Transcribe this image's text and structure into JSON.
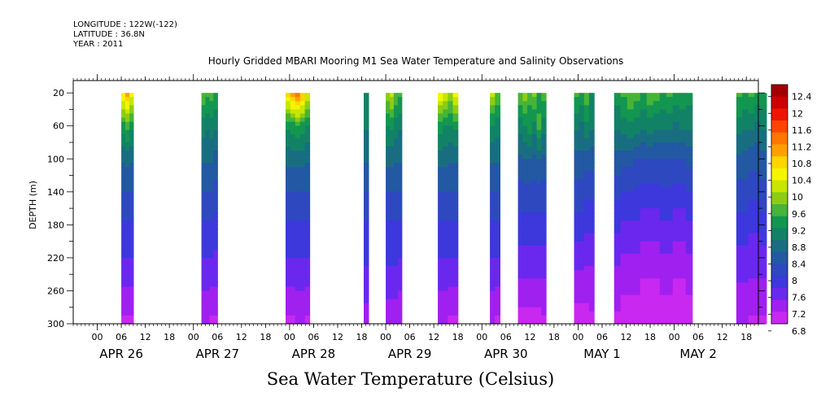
{
  "meta": {
    "longitude": "LONGITUDE : 122W(-122)",
    "latitude": "LATITUDE : 36.8N",
    "year": "YEAR : 2011"
  },
  "footer_title": "Sea Water Temperature (Celsius)",
  "chart_data": {
    "type": "heatmap",
    "title": "Hourly Gridded MBARI Mooring M1 Sea Water Temperature and Salinity Observations",
    "ylabel": "DEPTH (m)",
    "xlabel": "",
    "y_inverted": true,
    "ylim": [
      300,
      5
    ],
    "yticks": [
      20,
      60,
      100,
      140,
      180,
      220,
      260,
      300
    ],
    "xlim_hours": [
      -6,
      165
    ],
    "xtick_hours_of_day": [
      "00",
      "06",
      "12",
      "18",
      "00",
      "06",
      "12",
      "18",
      "00",
      "06",
      "12",
      "18",
      "00",
      "06",
      "12",
      "18",
      "00",
      "06",
      "12",
      "18",
      "00",
      "06",
      "12",
      "18",
      "00",
      "06",
      "12",
      "18"
    ],
    "day_labels": [
      {
        "label": "APR 26",
        "hour": 6
      },
      {
        "label": "APR 27",
        "hour": 30
      },
      {
        "label": "APR 28",
        "hour": 54
      },
      {
        "label": "APR 29",
        "hour": 78
      },
      {
        "label": "APR 30",
        "hour": 102
      },
      {
        "label": "MAY  1",
        "hour": 126
      },
      {
        "label": "MAY  2",
        "hour": 150
      }
    ],
    "colorbar": {
      "labels": [
        "12.4",
        "12",
        "11.6",
        "11.2",
        "10.8",
        "10.4",
        "10",
        "9.6",
        "9.2",
        "8.8",
        "8.4",
        "8",
        "7.6",
        "7.2",
        "6.8"
      ],
      "colors": [
        "#a00000",
        "#cc0000",
        "#ee1500",
        "#ff4400",
        "#ff7700",
        "#ffa000",
        "#ffd500",
        "#f5f500",
        "#c8e600",
        "#8ccd14",
        "#46b438",
        "#129650",
        "#128266",
        "#186e80",
        "#2358a2",
        "#2e48c0",
        "#3c38dc",
        "#6a28ee",
        "#a020f0",
        "#c828f0"
      ]
    },
    "series": [
      {
        "start": 6,
        "end": 9,
        "cols": [
          [
            10.5,
            9.2,
            8.5,
            8.2,
            7.9,
            7.5,
            7.0
          ],
          [
            10.9,
            9.4,
            8.6,
            8.2,
            7.9,
            7.5,
            7.0
          ],
          [
            10.4,
            9.1,
            8.5,
            8.2,
            7.9,
            7.5,
            7.0
          ]
        ]
      },
      {
        "start": 26,
        "end": 30,
        "cols": [
          [
            9.6,
            8.9,
            8.5,
            8.2,
            7.9,
            7.5,
            7.1
          ],
          [
            9.4,
            8.8,
            8.5,
            8.2,
            7.9,
            7.5,
            7.1
          ],
          [
            9.5,
            8.9,
            8.5,
            8.2,
            7.9,
            7.5,
            7.0
          ],
          [
            9.3,
            8.8,
            8.4,
            8.1,
            7.8,
            7.5,
            7.0
          ]
        ]
      },
      {
        "start": 47,
        "end": 53,
        "cols": [
          [
            10.6,
            9.1,
            8.6,
            8.2,
            7.9,
            7.5,
            7.0
          ],
          [
            11.0,
            9.2,
            8.6,
            8.2,
            7.9,
            7.5,
            7.0
          ],
          [
            11.2,
            9.3,
            8.6,
            8.2,
            7.9,
            7.5,
            7.1
          ],
          [
            10.8,
            9.2,
            8.6,
            8.2,
            7.9,
            7.5,
            7.1
          ],
          [
            10.2,
            9.0,
            8.5,
            8.2,
            7.9,
            7.5,
            7.0
          ]
        ]
      },
      {
        "start": 66.5,
        "end": 67.7,
        "cols": [
          [
            9.0,
            8.8,
            8.5,
            8.2,
            7.9,
            7.6,
            7.2
          ]
        ]
      },
      {
        "start": 72,
        "end": 76,
        "cols": [
          [
            9.8,
            9.0,
            8.6,
            8.2,
            7.9,
            7.6,
            7.1
          ],
          [
            10.0,
            9.1,
            8.6,
            8.2,
            7.9,
            7.6,
            7.1
          ],
          [
            9.6,
            8.9,
            8.5,
            8.2,
            7.9,
            7.6,
            7.1
          ],
          [
            9.4,
            8.8,
            8.5,
            8.2,
            7.9,
            7.5,
            7.1
          ]
        ]
      },
      {
        "start": 85,
        "end": 90,
        "cols": [
          [
            10.4,
            9.2,
            8.6,
            8.2,
            7.9,
            7.5,
            7.1
          ],
          [
            10.2,
            9.0,
            8.6,
            8.2,
            7.9,
            7.5,
            7.1
          ],
          [
            9.8,
            9.0,
            8.5,
            8.2,
            7.9,
            7.5,
            7.0
          ],
          [
            10.3,
            9.1,
            8.5,
            8.2,
            7.9,
            7.5,
            7.0
          ]
        ]
      },
      {
        "start": 98,
        "end": 100.5,
        "cols": [
          [
            10.0,
            9.0,
            8.5,
            8.2,
            7.9,
            7.5,
            7.1
          ],
          [
            9.6,
            8.9,
            8.5,
            8.2,
            7.9,
            7.5,
            7.0
          ]
        ]
      },
      {
        "start": 105,
        "end": 112,
        "cols": [
          [
            9.6,
            8.9,
            8.4,
            8.1,
            7.8,
            7.4,
            6.9
          ],
          [
            9.8,
            9.0,
            8.5,
            8.1,
            7.8,
            7.4,
            6.9
          ],
          [
            9.4,
            9.2,
            8.5,
            8.1,
            7.8,
            7.4,
            6.9
          ],
          [
            9.7,
            8.9,
            8.4,
            8.1,
            7.8,
            7.4,
            6.9
          ],
          [
            9.2,
            9.4,
            8.5,
            8.1,
            7.8,
            7.4,
            6.9
          ],
          [
            9.5,
            8.9,
            8.4,
            8.1,
            7.8,
            7.4,
            7.0
          ]
        ]
      },
      {
        "start": 119,
        "end": 124,
        "cols": [
          [
            9.4,
            8.8,
            8.4,
            8.1,
            7.8,
            7.3,
            6.9
          ],
          [
            9.2,
            8.7,
            8.4,
            8.1,
            7.8,
            7.3,
            6.9
          ],
          [
            9.5,
            9.0,
            8.3,
            8.0,
            7.7,
            7.3,
            6.9
          ],
          [
            9.0,
            8.8,
            8.3,
            8.0,
            7.7,
            7.3,
            7.0
          ]
        ]
      },
      {
        "start": 129,
        "end": 148.5,
        "cols": [
          [
            9.2,
            8.8,
            8.4,
            8.0,
            7.7,
            7.3,
            7.0
          ],
          [
            9.4,
            8.9,
            8.3,
            7.9,
            7.6,
            7.2,
            6.9
          ],
          [
            9.6,
            9.0,
            8.3,
            7.9,
            7.6,
            7.2,
            6.9
          ],
          [
            9.5,
            8.9,
            8.2,
            7.9,
            7.6,
            7.2,
            6.9
          ],
          [
            9.3,
            8.8,
            8.2,
            7.8,
            7.5,
            7.1,
            6.9
          ],
          [
            9.6,
            8.9,
            8.2,
            7.8,
            7.5,
            7.1,
            6.9
          ],
          [
            9.5,
            8.8,
            8.2,
            7.8,
            7.5,
            7.1,
            6.9
          ],
          [
            9.3,
            8.8,
            8.2,
            7.9,
            7.6,
            7.2,
            6.9
          ],
          [
            9.4,
            8.8,
            8.2,
            7.9,
            7.6,
            7.2,
            6.9
          ],
          [
            9.2,
            8.7,
            8.2,
            7.8,
            7.5,
            7.1,
            6.9
          ],
          [
            9.3,
            8.8,
            8.2,
            7.8,
            7.5,
            7.1,
            6.9
          ],
          [
            9.2,
            8.8,
            8.3,
            7.9,
            7.6,
            7.2,
            6.9
          ]
        ]
      },
      {
        "start": 159.5,
        "end": 167,
        "cols": [
          [
            9.4,
            8.9,
            8.4,
            8.1,
            7.8,
            7.4,
            7.1
          ],
          [
            9.3,
            8.8,
            8.4,
            8.1,
            7.8,
            7.4,
            7.1
          ],
          [
            9.4,
            8.8,
            8.3,
            8.0,
            7.7,
            7.4,
            7.0
          ],
          [
            9.2,
            8.7,
            8.3,
            8.0,
            7.7,
            7.4,
            7.0
          ],
          [
            9.3,
            8.8,
            8.4,
            8.1,
            7.8,
            7.4,
            7.0
          ]
        ]
      }
    ],
    "profile_depths": [
      20,
      60,
      100,
      140,
      180,
      240,
      300
    ]
  }
}
